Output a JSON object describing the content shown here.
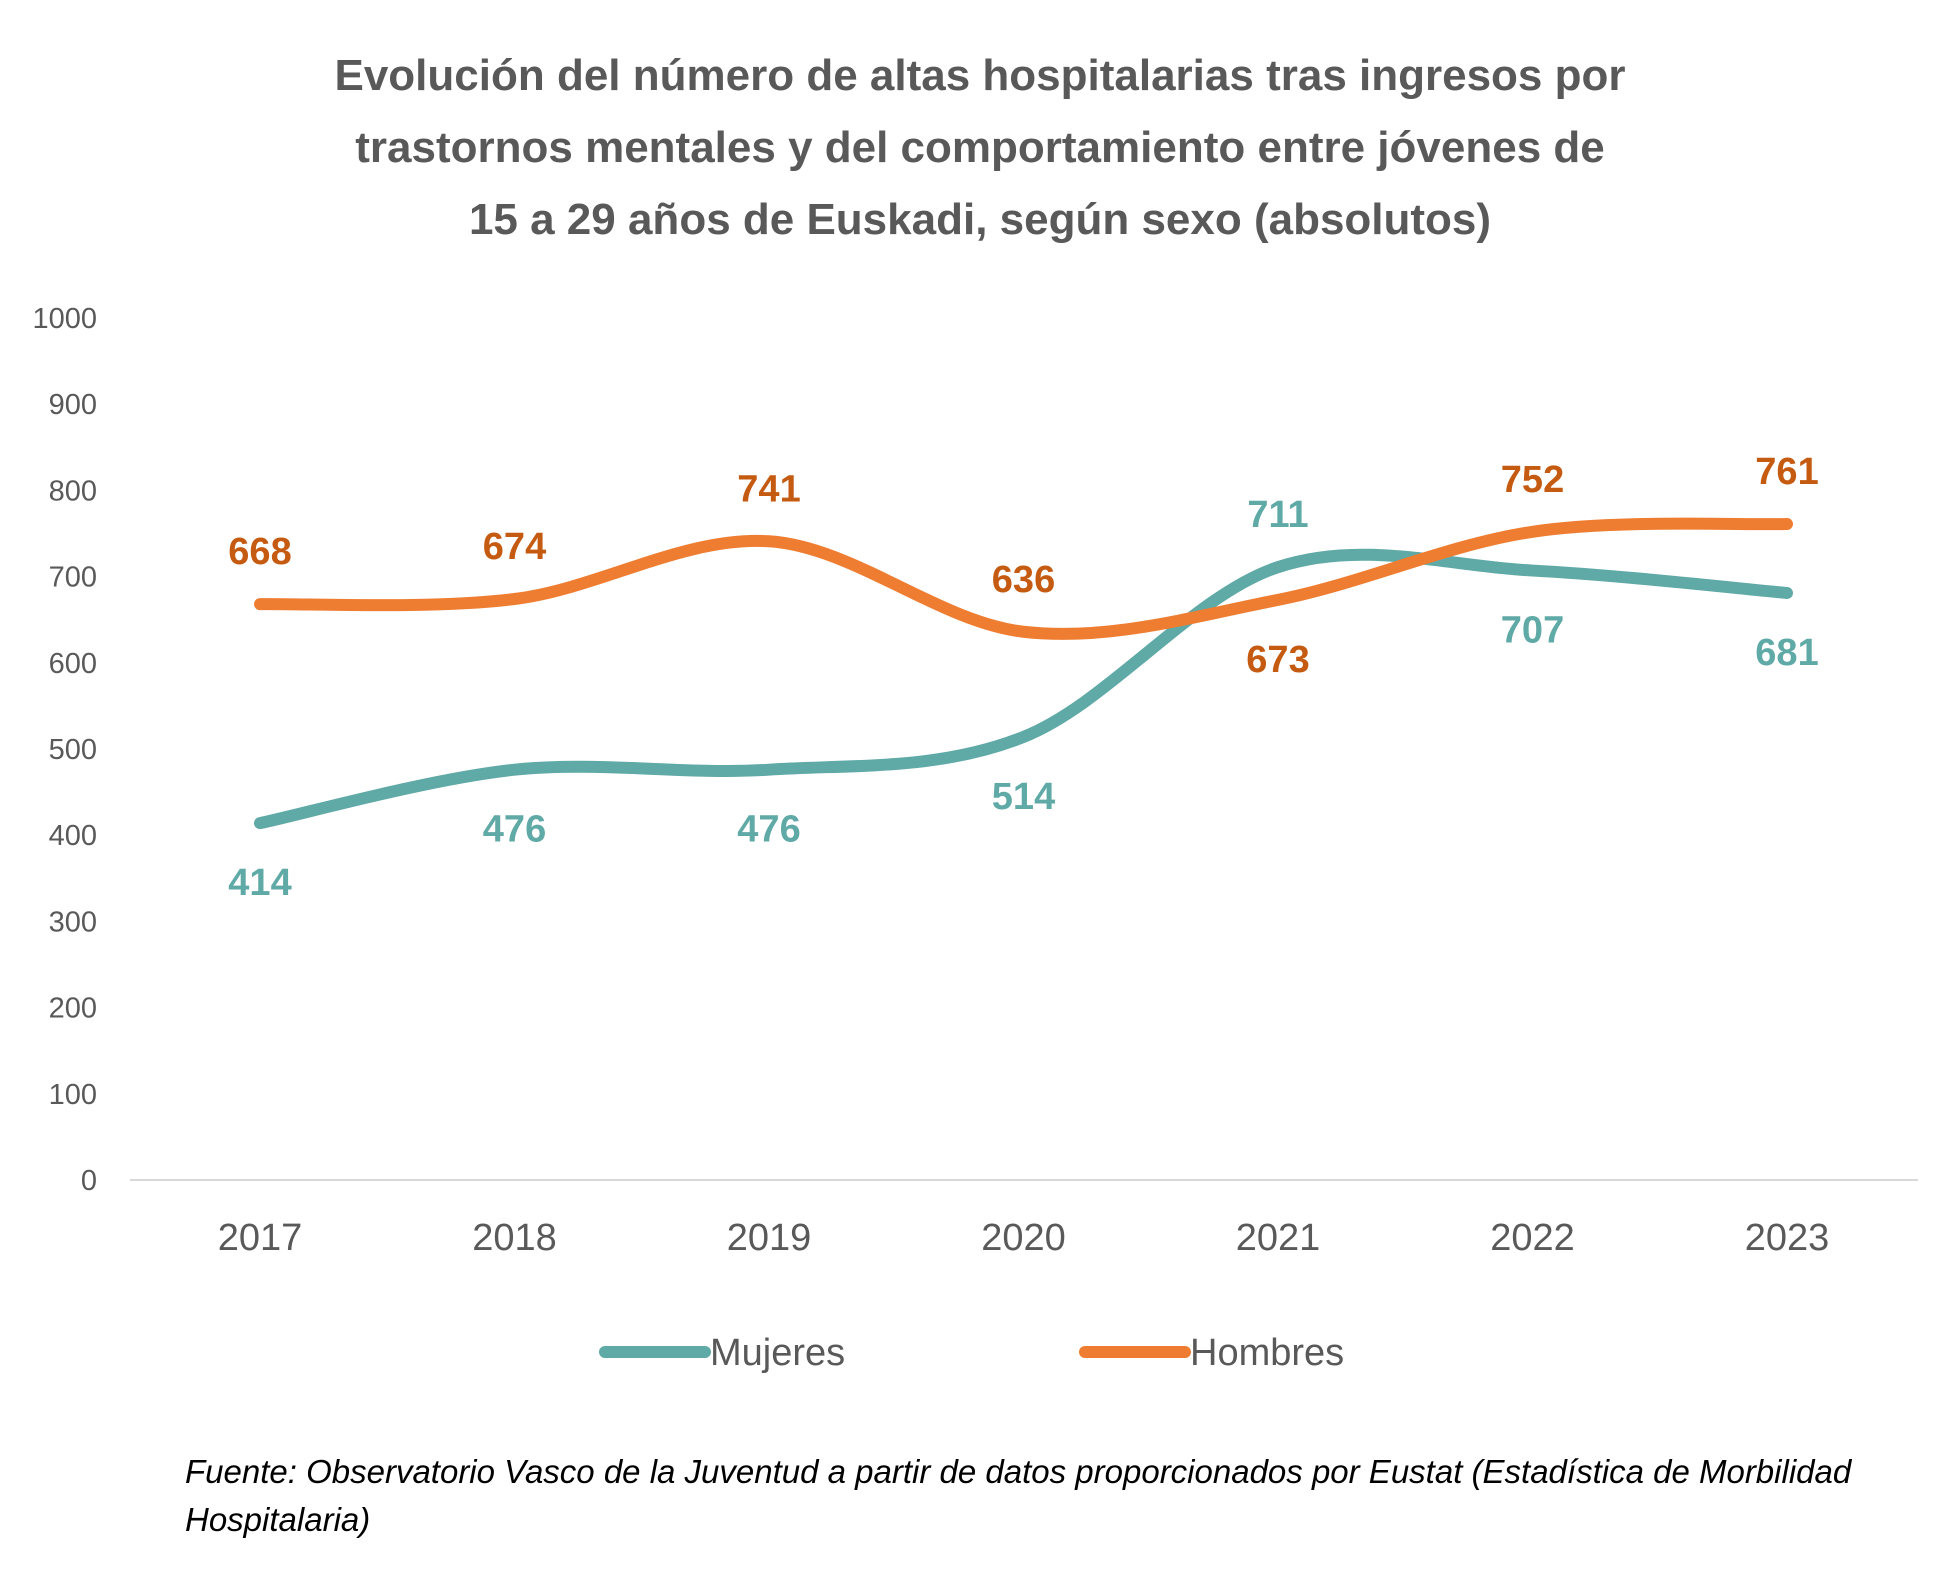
{
  "chart_data": {
    "type": "line",
    "title_lines": [
      "Evolución del número de altas hospitalarias tras ingresos por",
      "trastornos mentales y del comportamiento entre jóvenes de",
      "15 a 29 años de Euskadi, según sexo (absolutos)"
    ],
    "categories": [
      "2017",
      "2018",
      "2019",
      "2020",
      "2021",
      "2022",
      "2023"
    ],
    "ylim": [
      0,
      1000
    ],
    "yticks": [
      0,
      100,
      200,
      300,
      400,
      500,
      600,
      700,
      800,
      900,
      1000
    ],
    "grid": false,
    "legend_position": "bottom",
    "series": [
      {
        "name": "Mujeres",
        "color": "#5fa9a6",
        "values": [
          414,
          476,
          476,
          514,
          711,
          707,
          681
        ]
      },
      {
        "name": "Hombres",
        "color": "#ef7d31",
        "label_color": "#c55a11",
        "values": [
          668,
          674,
          741,
          636,
          673,
          752,
          761
        ]
      }
    ]
  },
  "source": "Fuente: Observatorio Vasco de la Juventud a partir de datos proporcionados por Eustat (Estadística de Morbilidad Hospitalaria)"
}
